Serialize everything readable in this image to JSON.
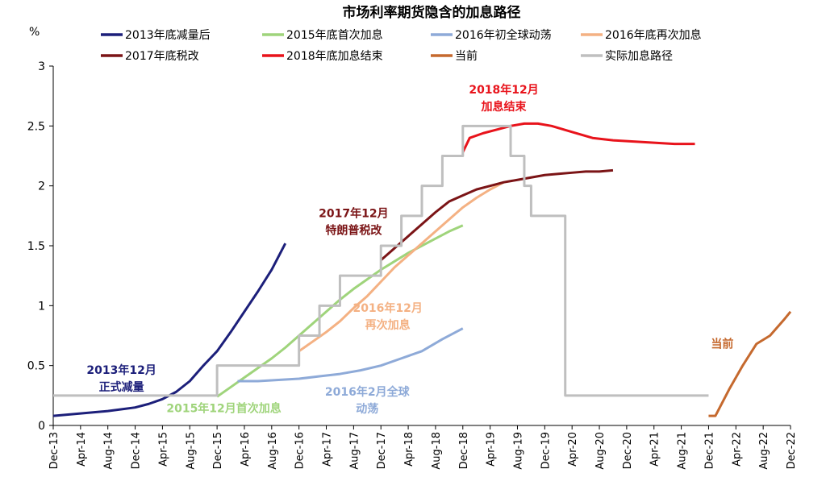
{
  "chart_data": {
    "type": "line",
    "title": "市场利率期货隐含的加息路径",
    "ylabel": "%",
    "ylim": [
      0,
      3
    ],
    "yticks": [
      "0",
      "0.5",
      "1",
      "1.5",
      "2",
      "2.5",
      "3"
    ],
    "xticks": [
      "Dec-13",
      "Apr-14",
      "Aug-14",
      "Dec-14",
      "Apr-15",
      "Aug-15",
      "Dec-15",
      "Apr-16",
      "Aug-16",
      "Dec-16",
      "Apr-17",
      "Aug-17",
      "Dec-17",
      "Apr-18",
      "Aug-18",
      "Dec-18",
      "Apr-19",
      "Aug-19",
      "Dec-19",
      "Apr-20",
      "Aug-20",
      "Dec-20",
      "Apr-21",
      "Aug-21",
      "Dec-21",
      "Apr-22",
      "Aug-22",
      "Dec-22"
    ],
    "grid": false,
    "legend_position": "top",
    "series": [
      {
        "name": "2013年底减量后",
        "color": "#1c1f7a",
        "x": [
          "2013-12",
          "2014-04",
          "2014-08",
          "2014-12",
          "2015-02",
          "2015-04",
          "2015-06",
          "2015-08",
          "2015-10",
          "2015-12",
          "2016-02",
          "2016-04",
          "2016-06",
          "2016-08",
          "2016-10"
        ],
        "y": [
          0.08,
          0.1,
          0.12,
          0.15,
          0.18,
          0.22,
          0.28,
          0.37,
          0.5,
          0.62,
          0.78,
          0.95,
          1.12,
          1.3,
          1.52
        ]
      },
      {
        "name": "2015年底首次加息",
        "color": "#9fd47b",
        "x": [
          "2015-12",
          "2016-02",
          "2016-04",
          "2016-06",
          "2016-08",
          "2016-10",
          "2016-12",
          "2017-02",
          "2017-04",
          "2017-06",
          "2017-08",
          "2017-10",
          "2017-12",
          "2018-02",
          "2018-04",
          "2018-06",
          "2018-08",
          "2018-10",
          "2018-12"
        ],
        "y": [
          0.24,
          0.32,
          0.4,
          0.48,
          0.56,
          0.65,
          0.75,
          0.85,
          0.95,
          1.05,
          1.14,
          1.22,
          1.3,
          1.37,
          1.44,
          1.5,
          1.56,
          1.62,
          1.67
        ]
      },
      {
        "name": "2016年初全球动荡",
        "color": "#8eaad8",
        "x": [
          "2016-03",
          "2016-06",
          "2016-09",
          "2016-12",
          "2017-03",
          "2017-06",
          "2017-09",
          "2017-12",
          "2018-03",
          "2018-06",
          "2018-09",
          "2018-12"
        ],
        "y": [
          0.37,
          0.37,
          0.38,
          0.39,
          0.41,
          0.43,
          0.46,
          0.5,
          0.56,
          0.62,
          0.72,
          0.81
        ]
      },
      {
        "name": "2016年底再次加息",
        "color": "#f4b183",
        "x": [
          "2016-12",
          "2017-02",
          "2017-04",
          "2017-06",
          "2017-08",
          "2017-10",
          "2017-12",
          "2018-02",
          "2018-04",
          "2018-06",
          "2018-08",
          "2018-10",
          "2018-12",
          "2019-02",
          "2019-04",
          "2019-06"
        ],
        "y": [
          0.62,
          0.7,
          0.78,
          0.87,
          0.98,
          1.08,
          1.2,
          1.32,
          1.42,
          1.52,
          1.62,
          1.72,
          1.82,
          1.9,
          1.97,
          2.03
        ]
      },
      {
        "name": "2017年底税改",
        "color": "#7b1416",
        "x": [
          "2017-12",
          "2018-02",
          "2018-04",
          "2018-06",
          "2018-08",
          "2018-10",
          "2018-12",
          "2019-02",
          "2019-04",
          "2019-06",
          "2019-08",
          "2019-10",
          "2019-12",
          "2020-02",
          "2020-04",
          "2020-06",
          "2020-08",
          "2020-10"
        ],
        "y": [
          1.38,
          1.48,
          1.58,
          1.68,
          1.78,
          1.87,
          1.92,
          1.97,
          2.0,
          2.03,
          2.05,
          2.07,
          2.09,
          2.1,
          2.11,
          2.12,
          2.12,
          2.13
        ]
      },
      {
        "name": "2018年底加息结束",
        "color": "#e8131b",
        "x": [
          "2018-12",
          "2019-01",
          "2019-03",
          "2019-05",
          "2019-07",
          "2019-09",
          "2019-11",
          "2020-01",
          "2020-04",
          "2020-07",
          "2020-10",
          "2021-01",
          "2021-04",
          "2021-07",
          "2021-10"
        ],
        "y": [
          2.28,
          2.4,
          2.44,
          2.47,
          2.5,
          2.52,
          2.52,
          2.5,
          2.45,
          2.4,
          2.38,
          2.37,
          2.36,
          2.35,
          2.35
        ]
      },
      {
        "name": "当前",
        "color": "#c5692e",
        "x": [
          "2021-12",
          "2022-01",
          "2022-03",
          "2022-05",
          "2022-07",
          "2022-09",
          "2022-11",
          "2022-12"
        ],
        "y": [
          0.08,
          0.08,
          0.3,
          0.5,
          0.68,
          0.75,
          0.88,
          0.95
        ]
      },
      {
        "name": "实际加息路径",
        "color": "#bfbfbf",
        "step": true,
        "x": [
          "2013-12",
          "2015-12",
          "2016-12",
          "2017-03",
          "2017-06",
          "2017-12",
          "2018-03",
          "2018-06",
          "2018-09",
          "2018-12",
          "2019-07",
          "2019-09",
          "2019-10",
          "2020-03",
          "2021-12"
        ],
        "y": [
          0.25,
          0.5,
          0.75,
          1.0,
          1.25,
          1.5,
          1.75,
          2.0,
          2.25,
          2.5,
          2.25,
          2.0,
          1.75,
          0.25,
          0.25
        ]
      }
    ],
    "annotations": [
      {
        "lines": [
          "2013年12月",
          "正式减量"
        ],
        "color": "#1c1f7a",
        "x": "2014-10",
        "y": 0.43
      },
      {
        "lines": [
          "2015年12月首次加息"
        ],
        "color": "#9fd47b",
        "x": "2016-01",
        "y": 0.11
      },
      {
        "lines": [
          "2016年2月全球",
          "动荡"
        ],
        "color": "#8eaad8",
        "x": "2017-10",
        "y": 0.25
      },
      {
        "lines": [
          "2016年12月",
          "再次加息"
        ],
        "color": "#f4b183",
        "x": "2018-01",
        "y": 0.95
      },
      {
        "lines": [
          "2017年12月",
          "特朗普税改"
        ],
        "color": "#7b1416",
        "x": "2017-08",
        "y": 1.74
      },
      {
        "lines": [
          "2018年12月",
          "加息结束"
        ],
        "color": "#e8131b",
        "x": "2019-06",
        "y": 2.77
      },
      {
        "lines": [
          "当前"
        ],
        "color": "#c5692e",
        "x": "2022-02",
        "y": 0.65
      }
    ]
  }
}
